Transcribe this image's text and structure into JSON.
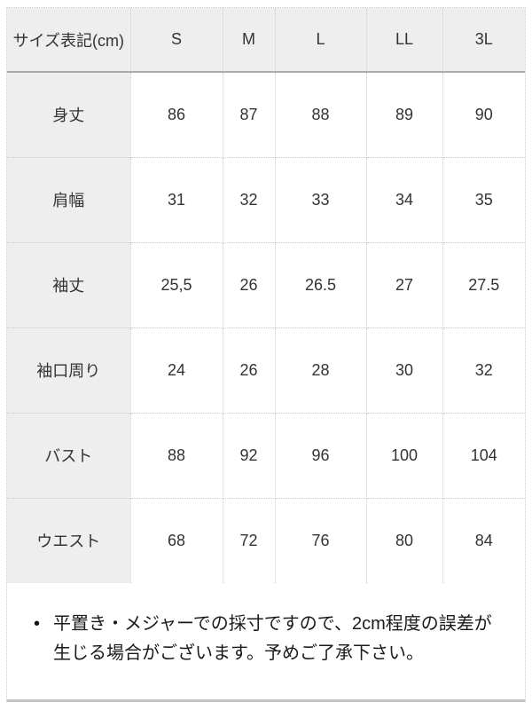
{
  "chart_data": {
    "type": "table",
    "title": "サイズ表記(cm)",
    "columns": [
      "サイズ表記(cm)",
      "S",
      "M",
      "L",
      "LL",
      "3L"
    ],
    "rows": [
      {
        "label": "身丈",
        "values": [
          "86",
          "87",
          "88",
          "89",
          "90"
        ]
      },
      {
        "label": "肩幅",
        "values": [
          "31",
          "32",
          "33",
          "34",
          "35"
        ]
      },
      {
        "label": "袖丈",
        "values": [
          "25,5",
          "26",
          "26.5",
          "27",
          "27.5"
        ]
      },
      {
        "label": "袖口周り",
        "values": [
          "24",
          "26",
          "28",
          "30",
          "32"
        ]
      },
      {
        "label": "バスト",
        "values": [
          "88",
          "92",
          "96",
          "100",
          "104"
        ]
      },
      {
        "label": "ウエスト",
        "values": [
          "68",
          "72",
          "76",
          "80",
          "84"
        ]
      }
    ],
    "layout": {
      "grid": "dotted",
      "header_background": true,
      "label_column_background": true
    }
  },
  "note": {
    "bullet": "•",
    "text": "平置き・メジャーでの採寸ですので、2cm程度の誤差が生じる場合がございます。予めご了承下さい。"
  },
  "colors": {
    "header_bg": "#eeeeee",
    "cell_bg": "#ffffff",
    "border_dotted": "#cccccc",
    "header_separator": "#ababab",
    "bottom_border": "#c4c4c4",
    "text": "#333333"
  }
}
